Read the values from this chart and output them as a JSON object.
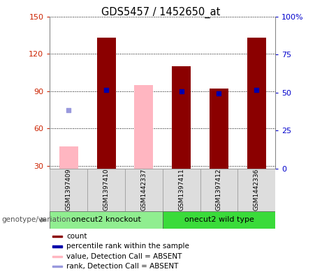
{
  "title": "GDS5457 / 1452650_at",
  "samples": [
    "GSM1397409",
    "GSM1397410",
    "GSM1442337",
    "GSM1397411",
    "GSM1397412",
    "GSM1442336"
  ],
  "groups": [
    {
      "label": "onecut2 knockout",
      "indices": [
        0,
        1,
        2
      ],
      "color": "#90EE90"
    },
    {
      "label": "onecut2 wild type",
      "indices": [
        3,
        4,
        5
      ],
      "color": "#3ADB3A"
    }
  ],
  "count_values": [
    null,
    133,
    null,
    110,
    92,
    133
  ],
  "count_absent_values": [
    46,
    null,
    95,
    null,
    null,
    null
  ],
  "percentile_rank_left": [
    null,
    91,
    null,
    90,
    88,
    91
  ],
  "rank_absent_left": [
    75,
    null,
    null,
    null,
    null,
    null
  ],
  "ylim_left": [
    28,
    150
  ],
  "yticks_left": [
    30,
    60,
    90,
    120,
    150
  ],
  "yticks_right": [
    0,
    25,
    50,
    75,
    100
  ],
  "ytick_labels_right": [
    "0",
    "25",
    "50",
    "75",
    "100%"
  ],
  "bar_color_present": "#8B0000",
  "bar_color_absent": "#FFB6C1",
  "dot_color_present": "#0000AA",
  "dot_color_absent": "#9999DD",
  "bar_width": 0.5,
  "dot_size": 25,
  "left_tick_color": "#CC2200",
  "right_tick_color": "#0000CC",
  "legend_items": [
    {
      "color": "#8B0000",
      "text": "count"
    },
    {
      "color": "#0000AA",
      "text": "percentile rank within the sample"
    },
    {
      "color": "#FFB6C1",
      "text": "value, Detection Call = ABSENT"
    },
    {
      "color": "#9999DD",
      "text": "rank, Detection Call = ABSENT"
    }
  ]
}
